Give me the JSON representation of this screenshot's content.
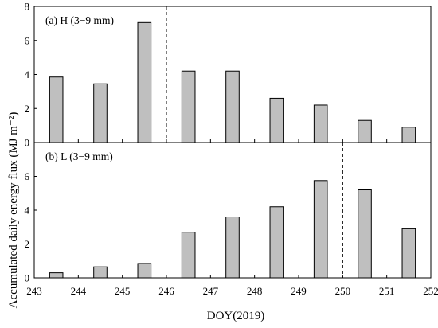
{
  "chart_data": {
    "type": "bar",
    "xlabel": "DOY(2019)",
    "ylabel": "Accumulated daily energy flux (MJ m⁻²)",
    "xlim": [
      243,
      252
    ],
    "xticks": [
      243,
      244,
      245,
      246,
      247,
      248,
      249,
      250,
      251,
      252
    ],
    "bar_width_days": 0.3,
    "bar_color": "#bfbfbf",
    "edge_color": "#000000",
    "grid": false,
    "panels": [
      {
        "label": "(a) H (3−9 mm)",
        "ylim": [
          0,
          8
        ],
        "yticks": [
          0,
          2,
          4,
          6,
          8
        ],
        "divider_x": 246,
        "x": [
          243.5,
          244.5,
          245.5,
          246.5,
          247.5,
          248.5,
          249.5,
          250.5,
          251.5
        ],
        "values": [
          3.85,
          3.45,
          7.05,
          4.2,
          4.2,
          2.6,
          2.2,
          1.3,
          0.9
        ]
      },
      {
        "label": "(b) L (3−9 mm)",
        "ylim": [
          0,
          8
        ],
        "yticks": [
          0,
          2,
          4,
          6
        ],
        "divider_x": 250,
        "x": [
          243.5,
          244.5,
          245.5,
          246.5,
          247.5,
          248.5,
          249.5,
          250.5,
          251.5
        ],
        "values": [
          0.3,
          0.65,
          0.85,
          2.7,
          3.6,
          4.2,
          5.75,
          5.2,
          2.9
        ]
      }
    ]
  }
}
